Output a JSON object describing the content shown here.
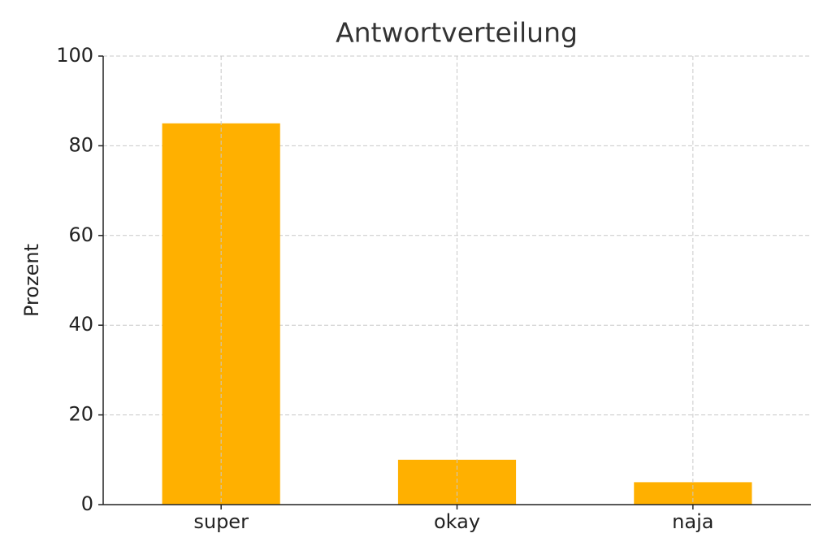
{
  "chart_data": {
    "type": "bar",
    "title": "Antwortverteilung",
    "y_label": "Prozent",
    "categories": [
      "super",
      "okay",
      "naja"
    ],
    "values": [
      85,
      10,
      5
    ],
    "color": "#ffb000",
    "ylim": [
      0,
      100
    ],
    "yticks": [
      0,
      20,
      40,
      60,
      80,
      100
    ],
    "grid": true
  }
}
